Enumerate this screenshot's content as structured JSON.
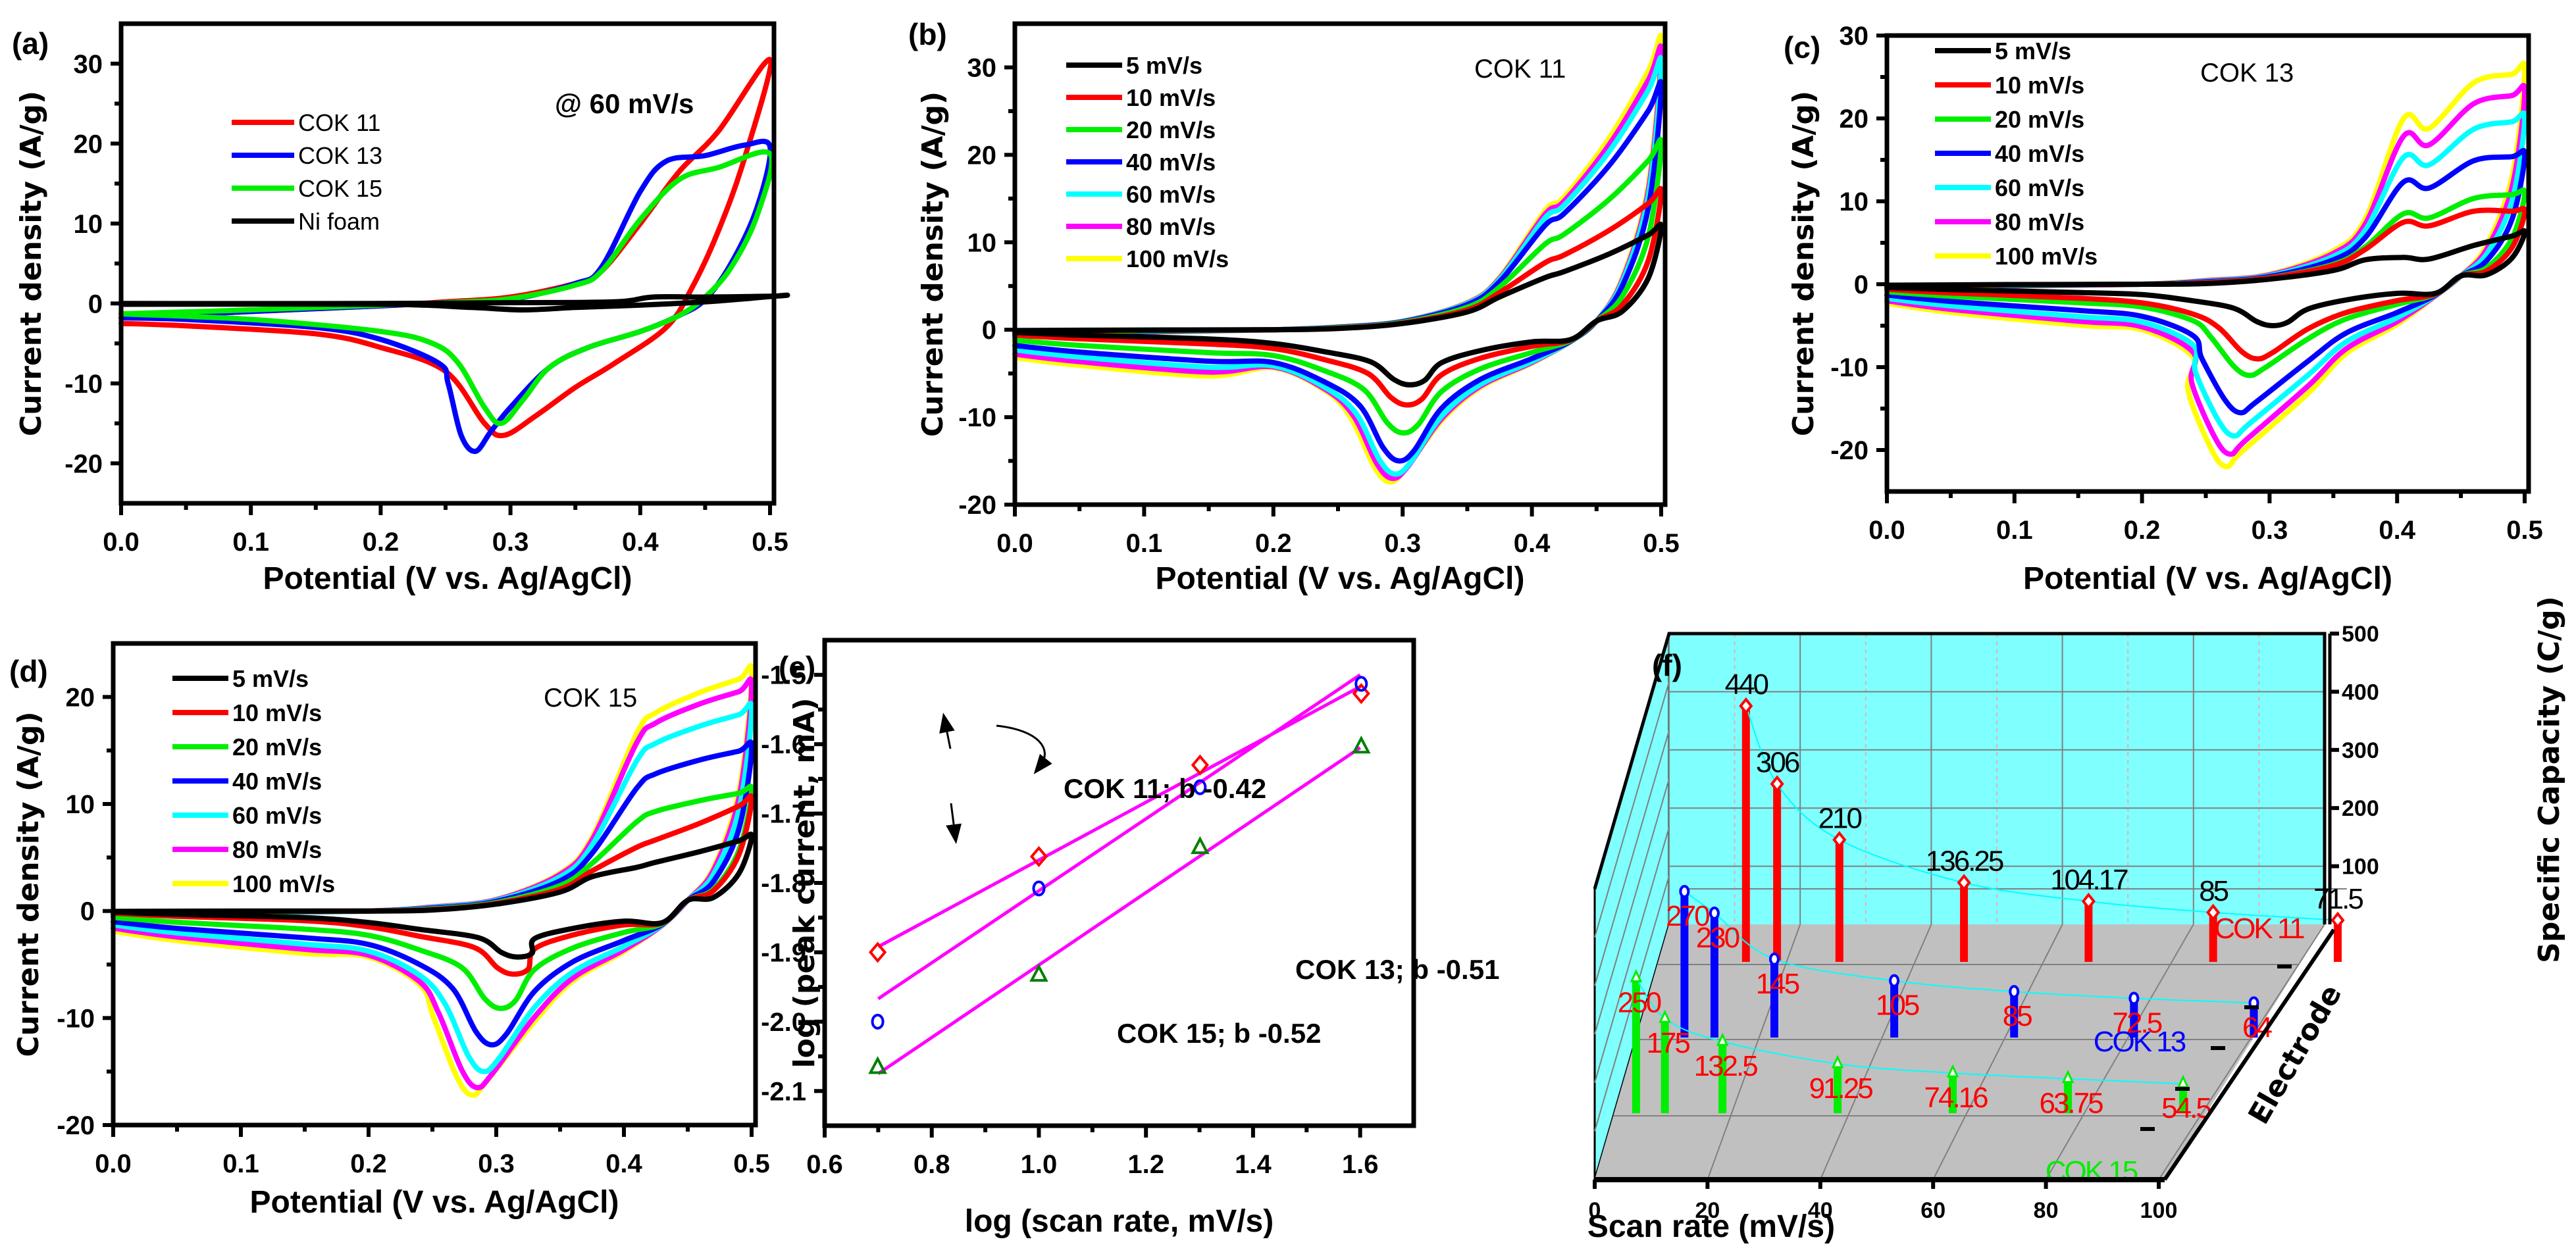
{
  "figure": {
    "colors": {
      "black": "#000000",
      "red": "#ff0000",
      "blue": "#0000ff",
      "green": "#00ee00",
      "cyan": "#00ffff",
      "magenta": "#ff00ff",
      "yellow": "#ffff00",
      "wall": "#80ffff",
      "floor": "#c0c0c0",
      "dark_green": "#008000"
    }
  },
  "chart_data": [
    {
      "id": "a",
      "panel_label": "(a)",
      "type": "line",
      "title": "",
      "annotation": "@ 60 mV/s",
      "xlabel": "Potential (V vs. Ag/AgCl)",
      "ylabel": "Current density (A/g)",
      "xlim": [
        0.0,
        0.5
      ],
      "ylim": [
        -25,
        35
      ],
      "xticks": [
        "0.0",
        "0.1",
        "0.2",
        "0.3",
        "0.4",
        "0.5"
      ],
      "xtick_values": [
        0.0,
        0.1,
        0.2,
        0.3,
        0.4,
        0.5
      ],
      "yticks": [
        "-20",
        "-10",
        "0",
        "10",
        "20",
        "30"
      ],
      "ytick_values": [
        -20,
        -10,
        0,
        10,
        20,
        30
      ],
      "legend_position": "upper-left",
      "series": [
        {
          "name": "COK 11",
          "color": "#ff0000",
          "anodic": [
            [
              0.0,
              -1.8
            ],
            [
              0.1,
              -1.0
            ],
            [
              0.2,
              -0.3
            ],
            [
              0.25,
              0.2
            ],
            [
              0.3,
              0.8
            ],
            [
              0.35,
              2.5
            ],
            [
              0.37,
              4.0
            ],
            [
              0.4,
              10.0
            ],
            [
              0.43,
              16.5
            ],
            [
              0.46,
              21.5
            ],
            [
              0.5,
              30.5
            ]
          ],
          "cathodic": [
            [
              0.5,
              30.5
            ],
            [
              0.48,
              18.0
            ],
            [
              0.46,
              9.0
            ],
            [
              0.44,
              2.0
            ],
            [
              0.42,
              -3.0
            ],
            [
              0.38,
              -7.5
            ],
            [
              0.35,
              -10.5
            ],
            [
              0.32,
              -14.0
            ],
            [
              0.295,
              -16.5
            ],
            [
              0.28,
              -15.0
            ],
            [
              0.25,
              -8.5
            ],
            [
              0.2,
              -5.5
            ],
            [
              0.15,
              -3.8
            ],
            [
              0.05,
              -2.8
            ],
            [
              0.0,
              -2.5
            ]
          ]
        },
        {
          "name": "COK 13",
          "color": "#0000ff",
          "anodic": [
            [
              0.0,
              -1.8
            ],
            [
              0.1,
              -1.0
            ],
            [
              0.2,
              -0.3
            ],
            [
              0.25,
              0.1
            ],
            [
              0.3,
              0.5
            ],
            [
              0.35,
              2.5
            ],
            [
              0.37,
              4.5
            ],
            [
              0.4,
              14.0
            ],
            [
              0.42,
              17.8
            ],
            [
              0.45,
              18.5
            ],
            [
              0.48,
              19.8
            ],
            [
              0.5,
              19.6
            ]
          ],
          "cathodic": [
            [
              0.5,
              19.6
            ],
            [
              0.49,
              12.0
            ],
            [
              0.47,
              5.0
            ],
            [
              0.45,
              0.5
            ],
            [
              0.43,
              -1.5
            ],
            [
              0.4,
              -3.5
            ],
            [
              0.36,
              -5.5
            ],
            [
              0.33,
              -8.0
            ],
            [
              0.3,
              -13.0
            ],
            [
              0.285,
              -16.0
            ],
            [
              0.273,
              -18.5
            ],
            [
              0.262,
              -16.5
            ],
            [
              0.252,
              -10.0
            ],
            [
              0.245,
              -7.5
            ],
            [
              0.2,
              -4.5
            ],
            [
              0.15,
              -3.0
            ],
            [
              0.05,
              -2.0
            ],
            [
              0.0,
              -1.8
            ]
          ]
        },
        {
          "name": "COK 15",
          "color": "#00ee00",
          "anodic": [
            [
              0.0,
              -1.3
            ],
            [
              0.1,
              -0.8
            ],
            [
              0.2,
              -0.2
            ],
            [
              0.25,
              0.1
            ],
            [
              0.3,
              0.6
            ],
            [
              0.35,
              2.3
            ],
            [
              0.37,
              4.0
            ],
            [
              0.4,
              10.5
            ],
            [
              0.43,
              15.5
            ],
            [
              0.46,
              17.0
            ],
            [
              0.5,
              18.7
            ]
          ],
          "cathodic": [
            [
              0.5,
              18.7
            ],
            [
              0.49,
              11.0
            ],
            [
              0.47,
              4.5
            ],
            [
              0.45,
              0.8
            ],
            [
              0.43,
              -1.5
            ],
            [
              0.4,
              -3.5
            ],
            [
              0.36,
              -5.5
            ],
            [
              0.33,
              -8.0
            ],
            [
              0.31,
              -12.0
            ],
            [
              0.293,
              -15.0
            ],
            [
              0.28,
              -13.0
            ],
            [
              0.26,
              -7.5
            ],
            [
              0.24,
              -5.0
            ],
            [
              0.2,
              -3.5
            ],
            [
              0.1,
              -2.0
            ],
            [
              0.0,
              -1.3
            ]
          ]
        },
        {
          "name": "Ni foam",
          "color": "#000000",
          "anodic": [
            [
              0.0,
              0.0
            ],
            [
              0.2,
              0.0
            ],
            [
              0.3,
              0.1
            ],
            [
              0.38,
              0.2
            ],
            [
              0.41,
              0.8
            ],
            [
              0.45,
              0.8
            ],
            [
              0.5,
              0.9
            ],
            [
              0.51,
              1.0
            ]
          ],
          "cathodic": [
            [
              0.5,
              0.9
            ],
            [
              0.45,
              0.2
            ],
            [
              0.4,
              -0.2
            ],
            [
              0.35,
              -0.5
            ],
            [
              0.31,
              -0.8
            ],
            [
              0.27,
              -0.5
            ],
            [
              0.2,
              -0.1
            ],
            [
              0.0,
              -0.1
            ]
          ]
        }
      ]
    },
    {
      "id": "b",
      "panel_label": "(b)",
      "type": "line",
      "annotation": "COK 11",
      "xlabel": "Potential (V vs. Ag/AgCl)",
      "ylabel": "Current density (A/g)",
      "xlim": [
        0.0,
        0.5
      ],
      "ylim": [
        -20,
        35
      ],
      "xticks": [
        "0.0",
        "0.1",
        "0.2",
        "0.3",
        "0.4",
        "0.5"
      ],
      "xtick_values": [
        0.0,
        0.1,
        0.2,
        0.3,
        0.4,
        0.5
      ],
      "yticks": [
        "-20",
        "-10",
        "0",
        "10",
        "20",
        "30"
      ],
      "ytick_values": [
        -20,
        -10,
        0,
        10,
        20,
        30
      ],
      "legend_position": "upper-left",
      "series": [
        {
          "name": "5   mV/s",
          "color": "#000000",
          "peak_c": -6.3,
          "peak_c_x": 0.305,
          "end_a": 11.8,
          "plateau": 7.0,
          "start_c": -0.3
        },
        {
          "name": "10 mV/s",
          "color": "#ff0000",
          "peak_c": -8.6,
          "peak_c_x": 0.303,
          "end_a": 15.8,
          "plateau": 9.0,
          "start_c": -0.6
        },
        {
          "name": "20 mV/s",
          "color": "#00ee00",
          "peak_c": -11.8,
          "peak_c_x": 0.3,
          "end_a": 21.3,
          "plateau": 11.5,
          "start_c": -1.2
        },
        {
          "name": "40 mV/s",
          "color": "#0000ff",
          "peak_c": -15.0,
          "peak_c_x": 0.297,
          "end_a": 27.8,
          "plateau": 14.0,
          "start_c": -1.8
        },
        {
          "name": "60 mV/s",
          "color": "#00ffff",
          "peak_c": -16.5,
          "peak_c_x": 0.294,
          "end_a": 30.5,
          "plateau": 15.0,
          "start_c": -2.3
        },
        {
          "name": "80 mV/s",
          "color": "#ff00ff",
          "peak_c": -17.0,
          "peak_c_x": 0.292,
          "end_a": 31.8,
          "plateau": 15.5,
          "start_c": -2.8
        },
        {
          "name": "100 mV/s",
          "color": "#ffff00",
          "peak_c": -17.4,
          "peak_c_x": 0.29,
          "end_a": 33.0,
          "plateau": 16.0,
          "start_c": -3.2
        }
      ]
    },
    {
      "id": "c",
      "panel_label": "(c)",
      "type": "line",
      "annotation": "COK 13",
      "xlabel": "Potential (V vs. Ag/AgCl)",
      "ylabel": "Current density (A/g)",
      "xlim": [
        0.0,
        0.5
      ],
      "ylim": [
        -25,
        30
      ],
      "xticks": [
        "0.0",
        "0.1",
        "0.2",
        "0.3",
        "0.4",
        "0.5"
      ],
      "xtick_values": [
        0.0,
        0.1,
        0.2,
        0.3,
        0.4,
        0.5
      ],
      "yticks": [
        "-20",
        "-10",
        "0",
        "10",
        "20",
        "30"
      ],
      "ytick_values": [
        -20,
        -10,
        0,
        10,
        20,
        30
      ],
      "legend_position": "upper-left",
      "series": [
        {
          "name": "5 mV/s",
          "color": "#000000",
          "peak_c": -5.0,
          "peak_c_x": 0.302,
          "end_a": 6.3,
          "plateau": 3.8,
          "start_c": -0.4
        },
        {
          "name": "10 mV/s",
          "color": "#ff0000",
          "peak_c": -9.0,
          "peak_c_x": 0.29,
          "end_a": 8.8,
          "plateau": 8.8,
          "start_c": -0.6
        },
        {
          "name": "20 mV/s",
          "color": "#00ee00",
          "peak_c": -11.0,
          "peak_c_x": 0.284,
          "end_a": 11.0,
          "plateau": 10.0,
          "start_c": -0.9
        },
        {
          "name": "40 mV/s",
          "color": "#0000ff",
          "peak_c": -15.5,
          "peak_c_x": 0.277,
          "end_a": 15.6,
          "plateau": 14.5,
          "start_c": -1.3
        },
        {
          "name": "60 mV/s",
          "color": "#00ffff",
          "peak_c": -18.3,
          "peak_c_x": 0.272,
          "end_a": 20.0,
          "plateau": 18.0,
          "start_c": -1.7
        },
        {
          "name": "80 mV/s",
          "color": "#ff00ff",
          "peak_c": -20.5,
          "peak_c_x": 0.269,
          "end_a": 23.2,
          "plateau": 21.0,
          "start_c": -2.0
        },
        {
          "name": "100 mV/s",
          "color": "#ffff00",
          "peak_c": -22.0,
          "peak_c_x": 0.266,
          "end_a": 25.8,
          "plateau": 23.5,
          "start_c": -2.3
        }
      ]
    },
    {
      "id": "d",
      "panel_label": "(d)",
      "type": "line",
      "annotation": "COK 15",
      "xlabel": "Potential (V vs. Ag/AgCl)",
      "ylabel": "Current density (A/g)",
      "xlim": [
        0.0,
        0.5
      ],
      "ylim": [
        -20,
        25
      ],
      "xticks": [
        "0.0",
        "0.1",
        "0.2",
        "0.3",
        "0.4",
        "0.5"
      ],
      "xtick_values": [
        0.0,
        0.1,
        0.2,
        0.3,
        0.4,
        0.5
      ],
      "yticks": [
        "-20",
        "-10",
        "0",
        "10",
        "20"
      ],
      "ytick_values": [
        -20,
        -10,
        0,
        10,
        20
      ],
      "legend_position": "upper-left",
      "series": [
        {
          "name": "5 mV/s",
          "color": "#000000",
          "peak_c": -4.3,
          "peak_c_x": 0.316,
          "end_a": 7.0,
          "plateau": 4.8,
          "start_c": -0.1
        },
        {
          "name": "10 mV/s",
          "color": "#ff0000",
          "peak_c": -5.9,
          "peak_c_x": 0.313,
          "end_a": 10.5,
          "plateau": 7.0,
          "start_c": -0.2
        },
        {
          "name": "20 mV/s",
          "color": "#00ee00",
          "peak_c": -9.1,
          "peak_c_x": 0.303,
          "end_a": 11.3,
          "plateau": 9.8,
          "start_c": -0.6
        },
        {
          "name": "40 mV/s",
          "color": "#0000ff",
          "peak_c": -12.5,
          "peak_c_x": 0.296,
          "end_a": 15.3,
          "plateau": 13.5,
          "start_c": -1.0
        },
        {
          "name": "60 mV/s",
          "color": "#00ffff",
          "peak_c": -15.0,
          "peak_c_x": 0.29,
          "end_a": 18.8,
          "plateau": 16.5,
          "start_c": -1.3
        },
        {
          "name": "80 mV/s",
          "color": "#ff00ff",
          "peak_c": -16.5,
          "peak_c_x": 0.285,
          "end_a": 21.0,
          "plateau": 18.5,
          "start_c": -1.6
        },
        {
          "name": "100 mV/s",
          "color": "#ffff00",
          "peak_c": -17.2,
          "peak_c_x": 0.281,
          "end_a": 22.2,
          "plateau": 19.5,
          "start_c": -1.9
        }
      ]
    },
    {
      "id": "e",
      "panel_label": "(e)",
      "type": "scatter",
      "xlabel": "log (scan rate, mV/s)",
      "ylabel": "log (peak current, mA)",
      "xlim": [
        0.6,
        1.7
      ],
      "ylim": [
        -2.15,
        -1.45
      ],
      "xticks": [
        "0.6",
        "0.8",
        "1.0",
        "1.2",
        "1.4",
        "1.6"
      ],
      "xtick_values": [
        0.6,
        0.8,
        1.0,
        1.2,
        1.4,
        1.6
      ],
      "yticks": [
        "-2.1",
        "-2.0",
        "-1.9",
        "-1.8",
        "-1.7",
        "-1.6",
        "-1.5"
      ],
      "ytick_values": [
        -2.1,
        -2.0,
        -1.9,
        -1.8,
        -1.7,
        -1.6,
        -1.5
      ],
      "series": [
        {
          "name": "COK 11",
          "marker": "diamond",
          "color": "#ff0000",
          "x": [
            0.699,
            1.0,
            1.301,
            1.602
          ],
          "y": [
            -1.9,
            -1.762,
            -1.63,
            -1.527
          ],
          "fit": {
            "x": [
              0.7,
              1.6
            ],
            "y": [
              -1.892,
              -1.517
            ]
          },
          "label": "COK 11; b -0.42"
        },
        {
          "name": "COK 13",
          "marker": "circle",
          "color": "#0000ff",
          "x": [
            0.699,
            1.0,
            1.301,
            1.602
          ],
          "y": [
            -2.0,
            -1.808,
            -1.662,
            -1.513
          ],
          "fit": {
            "x": [
              0.7,
              1.6
            ],
            "y": [
              -1.967,
              -1.5
            ]
          },
          "label": "COK 13; b -0.51"
        },
        {
          "name": "COK 15",
          "marker": "triangle",
          "color": "#008000",
          "x": [
            0.699,
            1.0,
            1.301,
            1.602
          ],
          "y": [
            -2.065,
            -1.932,
            -1.748,
            -1.603
          ],
          "fit": {
            "x": [
              0.7,
              1.6
            ],
            "y": [
              -2.075,
              -1.605
            ]
          },
          "label": "COK 15; b -0.52"
        }
      ]
    },
    {
      "id": "f",
      "panel_label": "(f)",
      "type": "bar",
      "xlabel": "Scan rate (mV/s)",
      "ylabel": "Specific Capacity (C/g)",
      "zlabel": "Electrode",
      "x": [
        5,
        10,
        20,
        40,
        60,
        80,
        100
      ],
      "xlim": [
        0,
        100
      ],
      "xticks": [
        "0",
        "20",
        "40",
        "60",
        "80",
        "100"
      ],
      "xtick_values": [
        0,
        20,
        40,
        60,
        80,
        100
      ],
      "ylim": [
        0,
        500
      ],
      "yticks": [
        "100",
        "200",
        "300",
        "400",
        "500"
      ],
      "ytick_values": [
        100,
        200,
        300,
        400,
        500
      ],
      "series": [
        {
          "name": "COK 11",
          "color": "#ff0000",
          "label_color": "#000000",
          "marker": "diamond",
          "values": [
            440,
            306,
            210,
            136.25,
            104.17,
            85,
            71.5
          ],
          "labels": [
            "440",
            "306",
            "210",
            "136.25",
            "104.17",
            "85",
            "71.5"
          ]
        },
        {
          "name": "COK 13",
          "color": "#0000ff",
          "label_color": "#ff0000",
          "marker": "circle",
          "values": [
            270,
            230,
            145,
            105,
            85,
            72.5,
            64
          ],
          "labels": [
            "270",
            "230",
            "145",
            "105",
            "85",
            "72.5",
            "64"
          ]
        },
        {
          "name": "COK 15",
          "color": "#00ee00",
          "label_color": "#ff0000",
          "marker": "triangle",
          "values": [
            250,
            175,
            132.5,
            91.25,
            74.16,
            63.75,
            54.5
          ],
          "labels": [
            "250",
            "175",
            "132.5",
            "91.25",
            "74.16",
            "63.75",
            "54.5"
          ]
        }
      ]
    }
  ]
}
